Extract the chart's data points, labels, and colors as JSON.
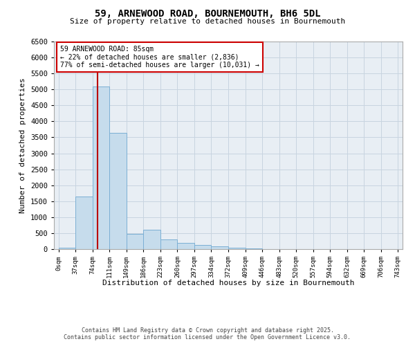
{
  "title_line1": "59, ARNEWOOD ROAD, BOURNEMOUTH, BH6 5DL",
  "title_line2": "Size of property relative to detached houses in Bournemouth",
  "xlabel": "Distribution of detached houses by size in Bournemouth",
  "ylabel": "Number of detached properties",
  "bar_edges": [
    0,
    37,
    74,
    111,
    148,
    185,
    222,
    259,
    296,
    333,
    370,
    407,
    444,
    481,
    518,
    555,
    592,
    629,
    666,
    703,
    740
  ],
  "bar_heights": [
    50,
    1650,
    5100,
    3650,
    480,
    600,
    300,
    200,
    130,
    80,
    50,
    20,
    10,
    5,
    5,
    3,
    2,
    2,
    2,
    2
  ],
  "bar_color": "#c6dcec",
  "bar_edge_color": "#7bafd4",
  "property_size": 85,
  "property_line_color": "#bb0000",
  "annotation_text": "59 ARNEWOOD ROAD: 85sqm\n← 22% of detached houses are smaller (2,836)\n77% of semi-detached houses are larger (10,031) →",
  "annotation_box_color": "#cc0000",
  "annotation_text_color": "#000000",
  "ylim": [
    0,
    6500
  ],
  "xlim": [
    -10,
    750
  ],
  "tick_labels": [
    "0sqm",
    "37sqm",
    "74sqm",
    "111sqm",
    "149sqm",
    "186sqm",
    "223sqm",
    "260sqm",
    "297sqm",
    "334sqm",
    "372sqm",
    "409sqm",
    "446sqm",
    "483sqm",
    "520sqm",
    "557sqm",
    "594sqm",
    "632sqm",
    "669sqm",
    "706sqm",
    "743sqm"
  ],
  "tick_positions": [
    0,
    37,
    74,
    111,
    148,
    185,
    222,
    259,
    296,
    333,
    370,
    407,
    444,
    481,
    518,
    555,
    592,
    629,
    666,
    703,
    740
  ],
  "yticks": [
    0,
    500,
    1000,
    1500,
    2000,
    2500,
    3000,
    3500,
    4000,
    4500,
    5000,
    5500,
    6000,
    6500
  ],
  "grid_color": "#c8d4e0",
  "bg_color": "#e8eef4",
  "footer_text": "Contains HM Land Registry data © Crown copyright and database right 2025.\nContains public sector information licensed under the Open Government Licence v3.0.",
  "fig_width": 6.0,
  "fig_height": 5.0,
  "dpi": 100
}
